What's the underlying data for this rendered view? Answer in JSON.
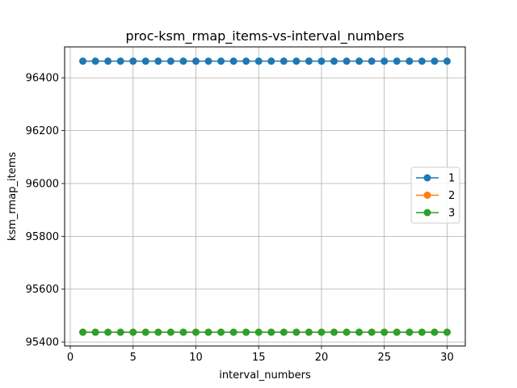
{
  "chart_data": {
    "type": "line",
    "title": "proc-ksm_rmap_items-vs-interval_numbers",
    "xlabel": "interval_numbers",
    "ylabel": "ksm_rmap_items",
    "xlim": [
      -0.45,
      31.45
    ],
    "ylim": [
      95385,
      96517
    ],
    "xticks": [
      0,
      5,
      10,
      15,
      20,
      25,
      30
    ],
    "yticks": [
      95400,
      95600,
      95800,
      96000,
      96200,
      96400
    ],
    "grid": true,
    "legend_position": "center-right",
    "x": [
      1,
      2,
      3,
      4,
      5,
      6,
      7,
      8,
      9,
      10,
      11,
      12,
      13,
      14,
      15,
      16,
      17,
      18,
      19,
      20,
      21,
      22,
      23,
      24,
      25,
      26,
      27,
      28,
      29,
      30
    ],
    "series": [
      {
        "name": "1",
        "color": "#1f77b4",
        "values": [
          96463,
          96463,
          96463,
          96463,
          96463,
          96463,
          96463,
          96463,
          96463,
          96463,
          96463,
          96463,
          96463,
          96463,
          96463,
          96463,
          96463,
          96463,
          96463,
          96463,
          96463,
          96463,
          96463,
          96463,
          96463,
          96463,
          96463,
          96463,
          96463,
          96463
        ]
      },
      {
        "name": "2",
        "color": "#ff7f0e",
        "values": [
          95437,
          95437,
          95437,
          95437,
          95437,
          95437,
          95437,
          95437,
          95437,
          95437,
          95437,
          95437,
          95437,
          95437,
          95437,
          95437,
          95437,
          95437,
          95437,
          95437,
          95437,
          95437,
          95437,
          95437,
          95437,
          95437,
          95437,
          95437,
          95437,
          95437
        ]
      },
      {
        "name": "3",
        "color": "#2ca02c",
        "values": [
          95437,
          95437,
          95437,
          95437,
          95437,
          95437,
          95437,
          95437,
          95437,
          95437,
          95437,
          95437,
          95437,
          95437,
          95437,
          95437,
          95437,
          95437,
          95437,
          95437,
          95437,
          95437,
          95437,
          95437,
          95437,
          95437,
          95437,
          95437,
          95437,
          95437
        ]
      }
    ]
  }
}
